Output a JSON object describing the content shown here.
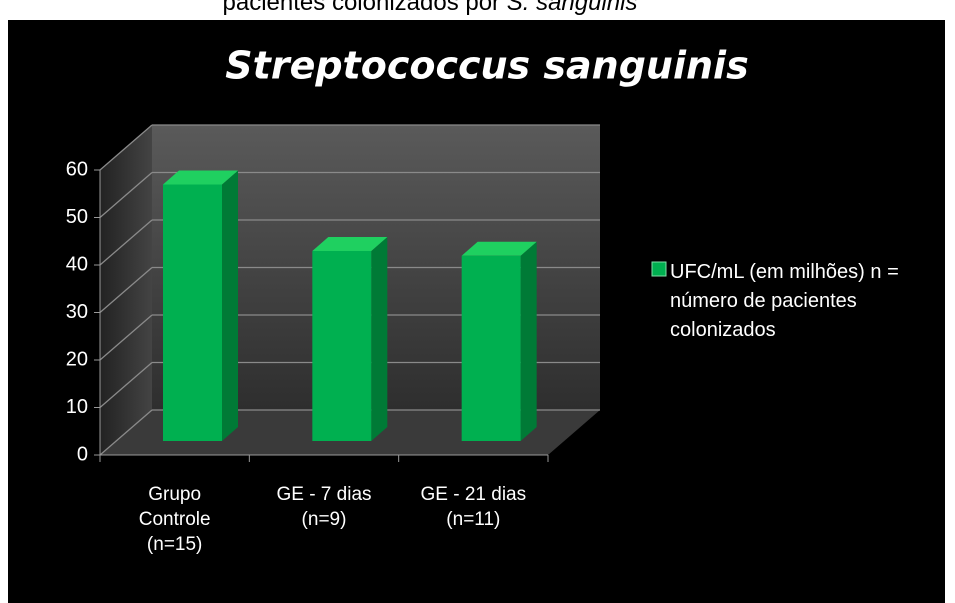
{
  "caption": "pacientes colonizados por",
  "caption_italic": "S. sanguinis",
  "chart_data": {
    "type": "bar",
    "title": "Streptococcus sanguinis",
    "categories": [
      "Grupo Controle (n=15)",
      "GE - 7 dias (n=9)",
      "GE - 21 dias (n=11)"
    ],
    "series": [
      {
        "name": "UFC/mL (em milhões) n = número de pacientes colonizados",
        "color": "#00b050",
        "values": [
          54,
          40,
          39
        ]
      }
    ],
    "ylim": [
      0,
      60
    ],
    "yticks": [
      0,
      10,
      20,
      30,
      40,
      50,
      60
    ],
    "grid": true,
    "legend": "right"
  }
}
